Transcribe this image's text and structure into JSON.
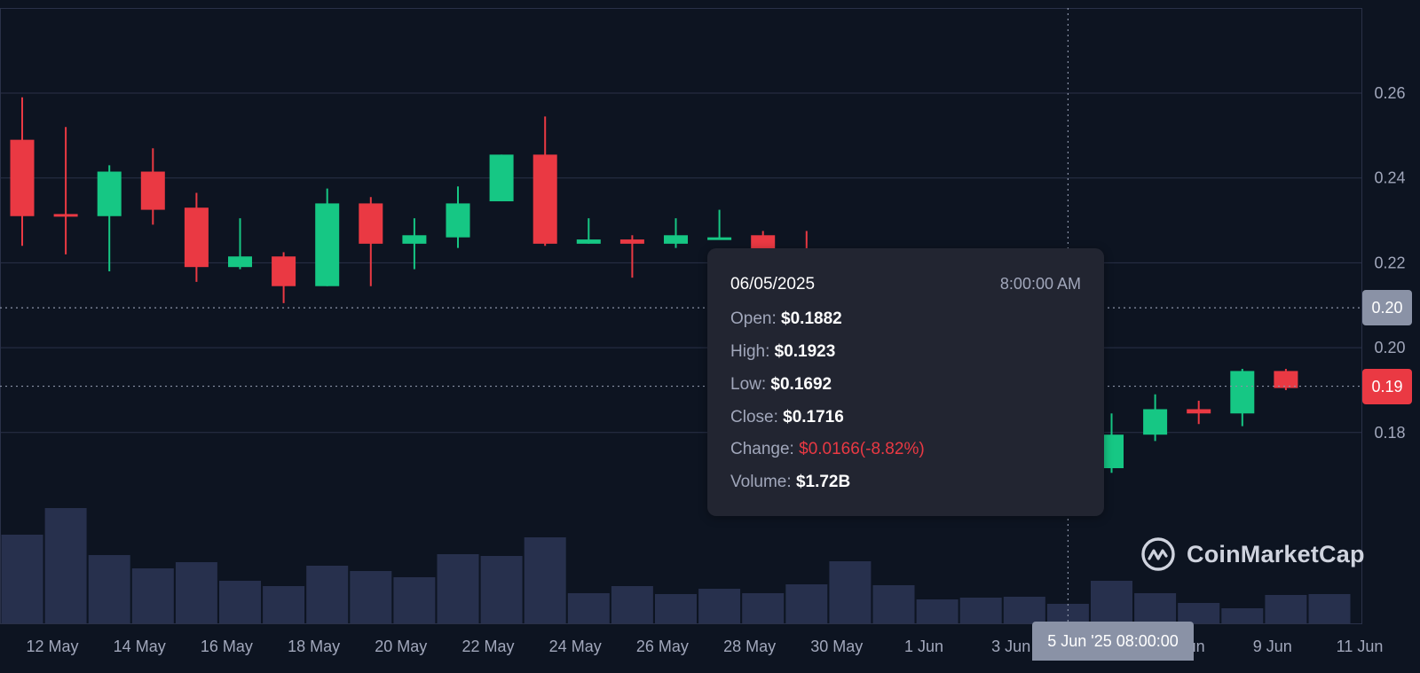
{
  "chart_data": {
    "type": "candlestick",
    "up_color": "#16c784",
    "down_color": "#ea3943",
    "volume_color": "#27304d",
    "background": "#0d1421",
    "grid": true,
    "ylim": [
      0.148,
      0.278
    ],
    "y_ticks": [
      {
        "value": 0.26,
        "label": "0.26"
      },
      {
        "value": 0.24,
        "label": "0.24"
      },
      {
        "value": 0.22,
        "label": "0.22"
      },
      {
        "value": 0.2,
        "label": "0.20"
      },
      {
        "value": 0.18,
        "label": "0.18"
      }
    ],
    "x_ticks": [
      {
        "index": 0,
        "label": "12 May"
      },
      {
        "index": 2,
        "label": "14 May"
      },
      {
        "index": 4,
        "label": "16 May"
      },
      {
        "index": 6,
        "label": "18 May"
      },
      {
        "index": 8,
        "label": "20 May"
      },
      {
        "index": 10,
        "label": "22 May"
      },
      {
        "index": 12,
        "label": "24 May"
      },
      {
        "index": 14,
        "label": "26 May"
      },
      {
        "index": 16,
        "label": "28 May"
      },
      {
        "index": 18,
        "label": "30 May"
      },
      {
        "index": 20,
        "label": "1 Jun"
      },
      {
        "index": 22,
        "label": "3 Jun"
      },
      {
        "index": 24,
        "label": "5 Jun"
      },
      {
        "index": 26,
        "label": "7 Jun"
      },
      {
        "index": 28,
        "label": "9 Jun"
      },
      {
        "index": 30,
        "label": "11 Jun"
      }
    ],
    "candles": [
      {
        "date": "12 May",
        "open": 0.249,
        "high": 0.259,
        "low": 0.224,
        "close": 0.231,
        "volume": 100
      },
      {
        "date": "13 May",
        "open": 0.2315,
        "high": 0.252,
        "low": 0.222,
        "close": 0.231,
        "volume": 130
      },
      {
        "date": "14 May",
        "open": 0.231,
        "high": 0.243,
        "low": 0.218,
        "close": 0.2415,
        "volume": 77
      },
      {
        "date": "15 May",
        "open": 0.2415,
        "high": 0.247,
        "low": 0.229,
        "close": 0.2325,
        "volume": 62
      },
      {
        "date": "16 May",
        "open": 0.233,
        "high": 0.2365,
        "low": 0.2155,
        "close": 0.219,
        "volume": 69
      },
      {
        "date": "17 May",
        "open": 0.219,
        "high": 0.2305,
        "low": 0.2185,
        "close": 0.2215,
        "volume": 48
      },
      {
        "date": "18 May",
        "open": 0.2215,
        "high": 0.2225,
        "low": 0.2105,
        "close": 0.2145,
        "volume": 42
      },
      {
        "date": "19 May",
        "open": 0.2145,
        "high": 0.2375,
        "low": 0.2145,
        "close": 0.234,
        "volume": 65
      },
      {
        "date": "20 May",
        "open": 0.234,
        "high": 0.2355,
        "low": 0.2145,
        "close": 0.2245,
        "volume": 59
      },
      {
        "date": "21 May",
        "open": 0.2245,
        "high": 0.2305,
        "low": 0.2185,
        "close": 0.2265,
        "volume": 52
      },
      {
        "date": "22 May",
        "open": 0.226,
        "high": 0.238,
        "low": 0.2235,
        "close": 0.234,
        "volume": 78
      },
      {
        "date": "23 May",
        "open": 0.2345,
        "high": 0.2455,
        "low": 0.2345,
        "close": 0.2455,
        "volume": 76
      },
      {
        "date": "24 May",
        "open": 0.2455,
        "high": 0.2545,
        "low": 0.224,
        "close": 0.2245,
        "volume": 97
      },
      {
        "date": "25 May",
        "open": 0.2245,
        "high": 0.2305,
        "low": 0.2245,
        "close": 0.2255,
        "volume": 34
      },
      {
        "date": "26 May",
        "open": 0.2255,
        "high": 0.2265,
        "low": 0.2165,
        "close": 0.2245,
        "volume": 42
      },
      {
        "date": "27 May",
        "open": 0.2245,
        "high": 0.2305,
        "low": 0.2235,
        "close": 0.2265,
        "volume": 33
      },
      {
        "date": "28 May",
        "open": 0.226,
        "high": 0.2325,
        "low": 0.2255,
        "close": 0.226,
        "volume": 39
      },
      {
        "date": "29 May",
        "open": 0.2265,
        "high": 0.2275,
        "low": 0.2215,
        "close": 0.223,
        "volume": 34
      },
      {
        "date": "30 May",
        "open": 0.223,
        "high": 0.2275,
        "low": 0.2195,
        "close": 0.2205,
        "volume": 44
      },
      {
        "date": "31 May",
        "open": null,
        "high": null,
        "low": null,
        "close": null,
        "volume": 70
      },
      {
        "date": "1 Jun",
        "open": null,
        "high": null,
        "low": null,
        "close": null,
        "volume": 43
      },
      {
        "date": "2 Jun",
        "open": null,
        "high": null,
        "low": null,
        "close": null,
        "volume": 27
      },
      {
        "date": "3 Jun",
        "open": null,
        "high": null,
        "low": null,
        "close": null,
        "volume": 29
      },
      {
        "date": "4 Jun",
        "open": null,
        "high": null,
        "low": null,
        "close": null,
        "volume": 30
      },
      {
        "date": "5 Jun",
        "open": 0.1882,
        "high": 0.1923,
        "low": 0.1692,
        "close": 0.1716,
        "volume": 22
      },
      {
        "date": "6 Jun",
        "open": 0.1716,
        "high": 0.1845,
        "low": 0.1705,
        "close": 0.1795,
        "volume": 48
      },
      {
        "date": "7 Jun",
        "open": 0.1795,
        "high": 0.189,
        "low": 0.178,
        "close": 0.1855,
        "volume": 34
      },
      {
        "date": "8 Jun",
        "open": 0.1855,
        "high": 0.1875,
        "low": 0.182,
        "close": 0.1845,
        "volume": 23
      },
      {
        "date": "9 Jun",
        "open": 0.1845,
        "high": 0.195,
        "low": 0.1815,
        "close": 0.1945,
        "volume": 17
      },
      {
        "date": "10 Jun",
        "open": 0.1945,
        "high": 0.195,
        "low": 0.19,
        "close": 0.1905,
        "volume": 32
      },
      {
        "date": "11 Jun",
        "open": null,
        "high": null,
        "low": null,
        "close": null,
        "volume": 33
      }
    ],
    "crosshair": {
      "index": 24,
      "price": 0.2
    }
  },
  "tooltip": {
    "date": "06/05/2025",
    "time": "8:00:00 AM",
    "open_label": "Open:",
    "open": "$0.1882",
    "high_label": "High:",
    "high": "$0.1923",
    "low_label": "Low:",
    "low": "$0.1692",
    "close_label": "Close:",
    "close": "$0.1716",
    "change_label": "Change:",
    "change": "$0.0166(-8.82%)",
    "volume_label": "Volume:",
    "volume": "$1.72B"
  },
  "price_tags": {
    "crosshair_price": "0.20",
    "current_price": "0.19",
    "current_price_value": 0.1905,
    "crosshair_color": "#8a92a6",
    "current_color": "#ea3943"
  },
  "crosshair_time_label": "5 Jun '25 08:00:00",
  "brand": {
    "name": "CoinMarketCap"
  }
}
